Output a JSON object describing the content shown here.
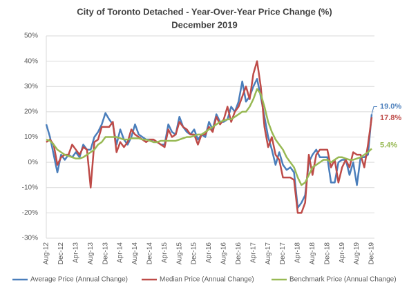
{
  "chart_data": {
    "type": "line",
    "title": "City of Toronto Detached - Year-Over-Year Price Change (%)",
    "subtitle": "December 2019",
    "categories": [
      "Aug-12",
      null,
      null,
      null,
      "Dec-12",
      null,
      null,
      null,
      "Apr-13",
      null,
      null,
      null,
      "Aug-13",
      null,
      null,
      null,
      "Dec-13",
      null,
      null,
      null,
      "Apr-14",
      null,
      null,
      null,
      "Aug-14",
      null,
      null,
      null,
      "Dec-14",
      null,
      null,
      null,
      "Apr-15",
      null,
      null,
      null,
      "Aug-15",
      null,
      null,
      null,
      "Dec-15",
      null,
      null,
      null,
      "Apr-16",
      null,
      null,
      null,
      "Aug-16",
      null,
      null,
      null,
      "Dec-16",
      null,
      null,
      null,
      "Apr-17",
      null,
      null,
      null,
      "Aug-17",
      null,
      null,
      null,
      "Dec-17",
      null,
      null,
      null,
      "Apr-18",
      null,
      null,
      null,
      "Aug-18",
      null,
      null,
      null,
      "Dec-18",
      null,
      null,
      null,
      "Apr-19",
      null,
      null,
      null,
      "Aug-19",
      null,
      null,
      null,
      "Dec-19"
    ],
    "series": [
      {
        "name": "Average Price (Annual Change)",
        "color": "#4a7ebb",
        "values": [
          15,
          10,
          3,
          -4,
          3,
          1,
          3,
          2,
          4,
          2,
          7,
          5,
          5,
          10,
          12,
          15,
          19.5,
          17,
          15,
          7,
          13,
          9,
          7,
          10,
          15,
          11,
          10,
          9,
          9,
          8,
          8,
          7,
          7,
          15,
          12,
          11,
          18,
          14,
          12,
          11,
          13,
          9,
          11,
          10,
          16,
          13,
          19,
          16,
          16,
          17,
          22,
          20,
          24,
          32,
          24,
          26,
          30,
          33,
          26,
          18,
          10,
          5,
          -1,
          4,
          -1,
          -3,
          -2,
          -4,
          -18,
          -16,
          -13,
          0,
          3,
          5,
          2,
          2,
          2,
          -8,
          -8,
          0,
          1,
          1,
          -5,
          0,
          -9,
          2,
          2,
          3,
          19.0
        ],
        "value_labels": [
          null,
          null,
          null,
          null,
          null,
          null,
          null,
          null,
          null,
          null,
          null,
          null,
          null,
          null,
          null,
          null,
          null,
          null,
          null,
          null,
          null,
          null,
          null,
          null,
          null,
          null,
          null,
          null,
          null,
          null,
          null,
          null,
          null,
          null,
          null,
          null,
          null,
          null,
          null,
          null,
          null,
          null,
          null,
          null,
          null,
          null,
          null,
          null,
          null,
          null,
          null,
          null,
          null,
          null,
          null,
          null,
          null,
          null,
          null,
          null,
          null,
          null,
          null,
          null,
          null,
          null,
          null,
          null,
          null,
          null,
          null,
          null,
          null,
          null,
          null,
          null,
          null,
          null,
          null,
          null,
          null,
          null,
          null,
          null,
          null,
          null,
          null,
          null,
          "19.0%"
        ]
      },
      {
        "name": "Median Price (Annual Change)",
        "color": "#be4b48",
        "values": [
          8,
          9,
          7,
          -1,
          2,
          3,
          3,
          7,
          5,
          3,
          6,
          5,
          -10,
          8,
          9,
          14,
          14,
          14,
          16,
          4,
          8,
          6,
          8,
          13,
          11,
          10,
          9,
          8,
          9,
          9,
          8,
          7,
          6,
          13,
          10,
          11,
          16,
          14,
          13,
          11,
          11,
          7,
          11,
          11,
          14,
          12,
          18,
          15,
          17,
          22,
          16,
          20,
          22,
          26,
          30,
          25,
          35,
          40,
          30,
          14,
          6,
          10,
          3,
          1,
          -6,
          -6,
          -6,
          -7,
          -20,
          -20,
          -16,
          3,
          -5,
          3,
          5,
          5,
          5,
          -2,
          1,
          -8,
          -2,
          1,
          -2,
          4,
          3,
          3,
          -2,
          7,
          17.8
        ],
        "value_labels": [
          null,
          null,
          null,
          null,
          null,
          null,
          null,
          null,
          null,
          null,
          null,
          null,
          null,
          null,
          null,
          null,
          null,
          null,
          null,
          null,
          null,
          null,
          null,
          null,
          null,
          null,
          null,
          null,
          null,
          null,
          null,
          null,
          null,
          null,
          null,
          null,
          null,
          null,
          null,
          null,
          null,
          null,
          null,
          null,
          null,
          null,
          null,
          null,
          null,
          null,
          null,
          null,
          null,
          null,
          null,
          null,
          null,
          null,
          null,
          null,
          null,
          null,
          null,
          null,
          null,
          null,
          null,
          null,
          null,
          null,
          null,
          null,
          null,
          null,
          null,
          null,
          null,
          null,
          null,
          null,
          null,
          null,
          null,
          null,
          null,
          null,
          null,
          null,
          "17.8%"
        ]
      },
      {
        "name": "Benchmark Price (Annual Change)",
        "color": "#98b954",
        "values": [
          9,
          8.5,
          7,
          5,
          4,
          3,
          2.5,
          2,
          1.5,
          1.5,
          2,
          3,
          4,
          5,
          7,
          8,
          10,
          10,
          10,
          10,
          9.5,
          9,
          9,
          9.5,
          9.5,
          9.5,
          9,
          9,
          8.5,
          8,
          8,
          8.5,
          8.5,
          8.5,
          8.5,
          8.5,
          9,
          9.5,
          10,
          10,
          10.5,
          11,
          11,
          12,
          13,
          14,
          15,
          16,
          16.5,
          17,
          17,
          18,
          19,
          20,
          20,
          22,
          25,
          29,
          27,
          22,
          16,
          12,
          9,
          7,
          5,
          2,
          0,
          -2,
          -6,
          -9,
          -8,
          -5,
          -2,
          -1,
          0,
          1,
          1,
          0,
          1,
          2,
          2,
          1.5,
          1,
          1,
          1.5,
          2,
          3,
          4,
          5.4
        ],
        "value_labels": [
          null,
          null,
          null,
          null,
          null,
          null,
          null,
          null,
          null,
          null,
          null,
          null,
          null,
          null,
          null,
          null,
          null,
          null,
          null,
          null,
          null,
          null,
          null,
          null,
          null,
          null,
          null,
          null,
          null,
          null,
          null,
          null,
          null,
          null,
          null,
          null,
          null,
          null,
          null,
          null,
          null,
          null,
          null,
          null,
          null,
          null,
          null,
          null,
          null,
          null,
          null,
          null,
          null,
          null,
          null,
          null,
          null,
          null,
          null,
          null,
          null,
          null,
          null,
          null,
          null,
          null,
          null,
          null,
          null,
          null,
          null,
          null,
          null,
          null,
          null,
          null,
          null,
          null,
          null,
          null,
          null,
          null,
          null,
          null,
          null,
          null,
          null,
          null,
          "5.4%"
        ]
      }
    ],
    "ylim": [
      -30,
      50
    ],
    "yticks": [
      {
        "value": -30,
        "label": "-30%"
      },
      {
        "value": -20,
        "label": "-20%"
      },
      {
        "value": -10,
        "label": "-10%"
      },
      {
        "value": 0,
        "label": "0%"
      },
      {
        "value": 10,
        "label": "10%"
      },
      {
        "value": 20,
        "label": "20%"
      },
      {
        "value": 30,
        "label": "30%"
      },
      {
        "value": 40,
        "label": "40%"
      },
      {
        "value": 50,
        "label": "50%"
      }
    ],
    "grid": true,
    "legend": "bottom"
  }
}
